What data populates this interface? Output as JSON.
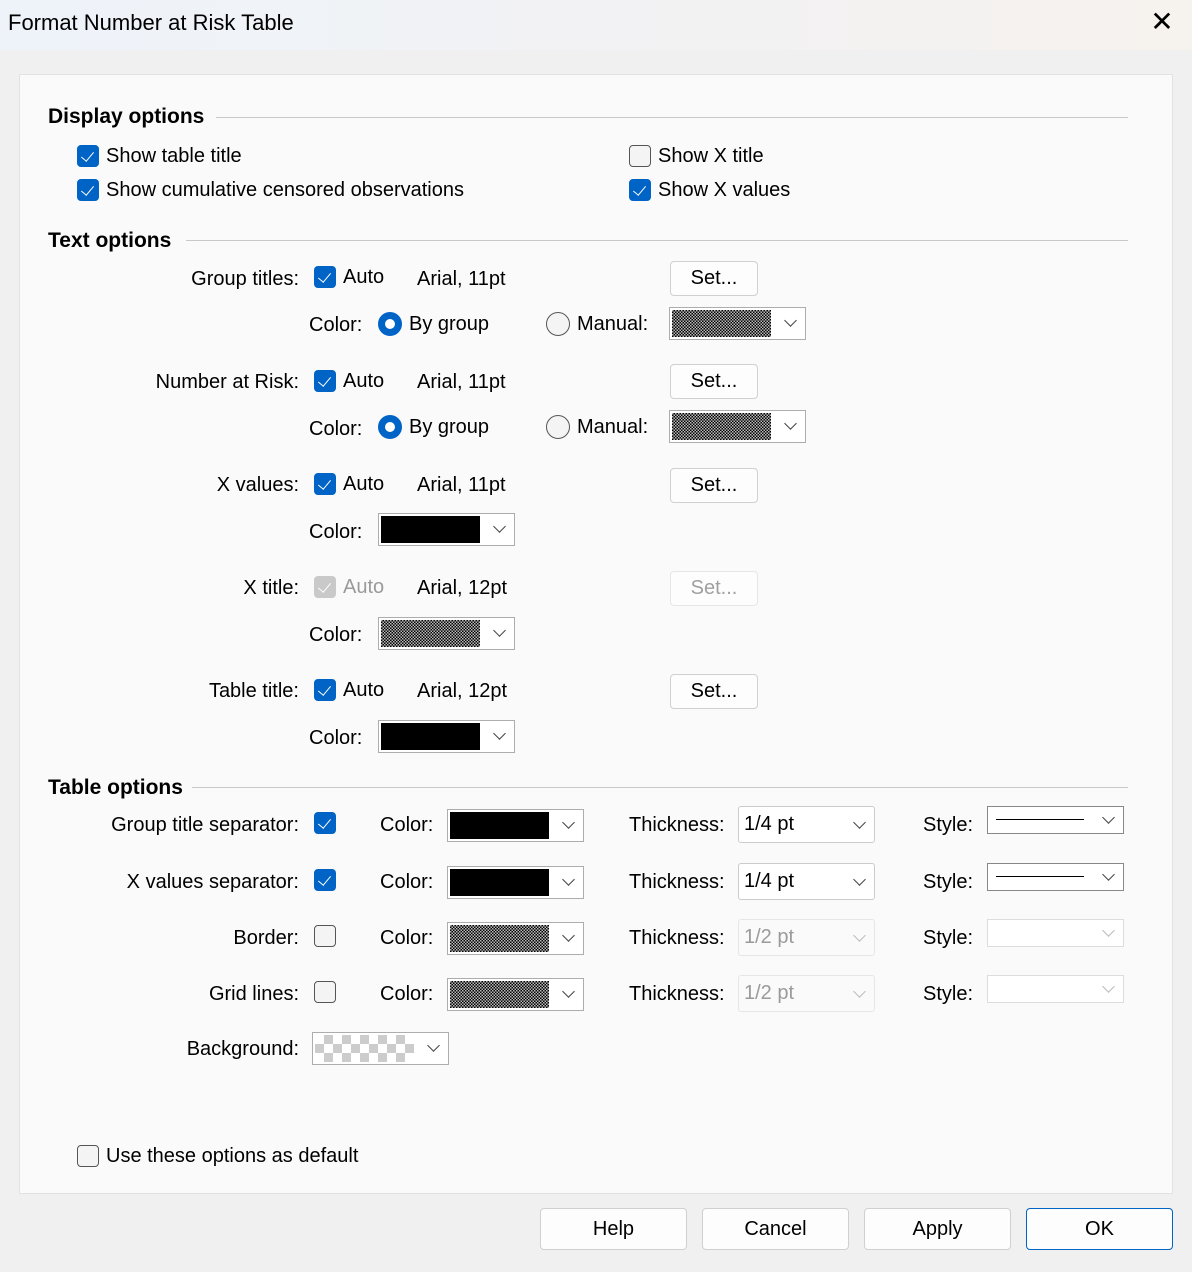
{
  "window": {
    "title": "Format Number at Risk Table",
    "close_icon": "close-icon"
  },
  "display": {
    "header": "Display options",
    "show_table_title": {
      "label": "Show table title",
      "checked": true
    },
    "show_cum_censored": {
      "label": "Show cumulative censored observations",
      "checked": true
    },
    "show_x_title": {
      "label": "Show X title",
      "checked": false
    },
    "show_x_values": {
      "label": "Show X values",
      "checked": true
    }
  },
  "text": {
    "header": "Text options",
    "auto_label": "Auto",
    "color_label": "Color:",
    "by_group": "By group",
    "manual": "Manual:",
    "set": "Set...",
    "group_titles": {
      "label": "Group titles:",
      "auto": true,
      "font": "Arial, 11pt",
      "color_mode": "By group"
    },
    "number_at_risk": {
      "label": "Number at Risk:",
      "auto": true,
      "font": "Arial, 11pt",
      "color_mode": "By group"
    },
    "x_values": {
      "label": "X values:",
      "auto": true,
      "font": "Arial, 11pt",
      "color": "#000000"
    },
    "x_title": {
      "label": "X title:",
      "auto": true,
      "disabled": true,
      "font": "Arial, 12pt",
      "color": "dithered"
    },
    "table_title": {
      "label": "Table title:",
      "auto": true,
      "font": "Arial, 12pt",
      "color": "#000000"
    }
  },
  "table": {
    "header": "Table options",
    "color_label": "Color:",
    "thickness_label": "Thickness:",
    "style_label": "Style:",
    "rows": [
      {
        "label": "Group title separator:",
        "checked": true,
        "color": "#000000",
        "thickness": "1/4 pt",
        "style": "solid"
      },
      {
        "label": "X values separator:",
        "checked": true,
        "color": "#000000",
        "thickness": "1/4 pt",
        "style": "solid"
      },
      {
        "label": "Border:",
        "checked": false,
        "color": "dithered",
        "thickness": "1/2 pt",
        "style": "none"
      },
      {
        "label": "Grid lines:",
        "checked": false,
        "color": "dithered",
        "thickness": "1/2 pt",
        "style": "none"
      }
    ],
    "background_label": "Background:",
    "background": "transparent"
  },
  "default": {
    "label": "Use these options as default",
    "checked": false
  },
  "buttons": {
    "help": "Help",
    "cancel": "Cancel",
    "apply": "Apply",
    "ok": "OK"
  },
  "colors": {
    "accent": "#0063c6"
  }
}
